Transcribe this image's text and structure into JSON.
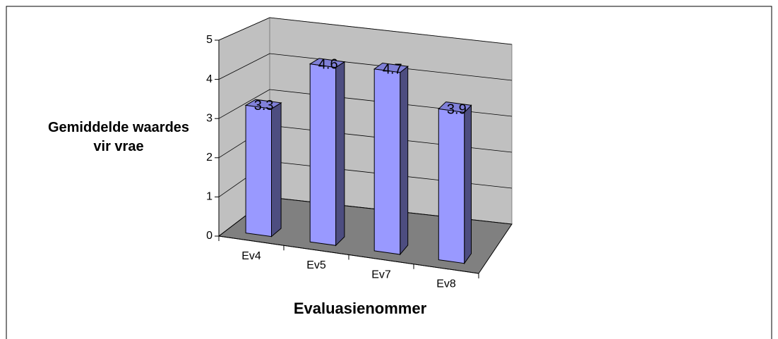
{
  "chart_data": {
    "type": "bar3d",
    "x_label": "Evaluasienommer",
    "y_label": "Gemiddelde waardes vir vrae",
    "categories": [
      "Ev4",
      "Ev5",
      "Ev7",
      "Ev8"
    ],
    "values": [
      3.3,
      4.6,
      4.7,
      3.9
    ],
    "color": "#9999ff",
    "ylim": [
      0,
      5
    ],
    "yticks": [
      0,
      1,
      2,
      3,
      4,
      5
    ],
    "grid": true
  }
}
